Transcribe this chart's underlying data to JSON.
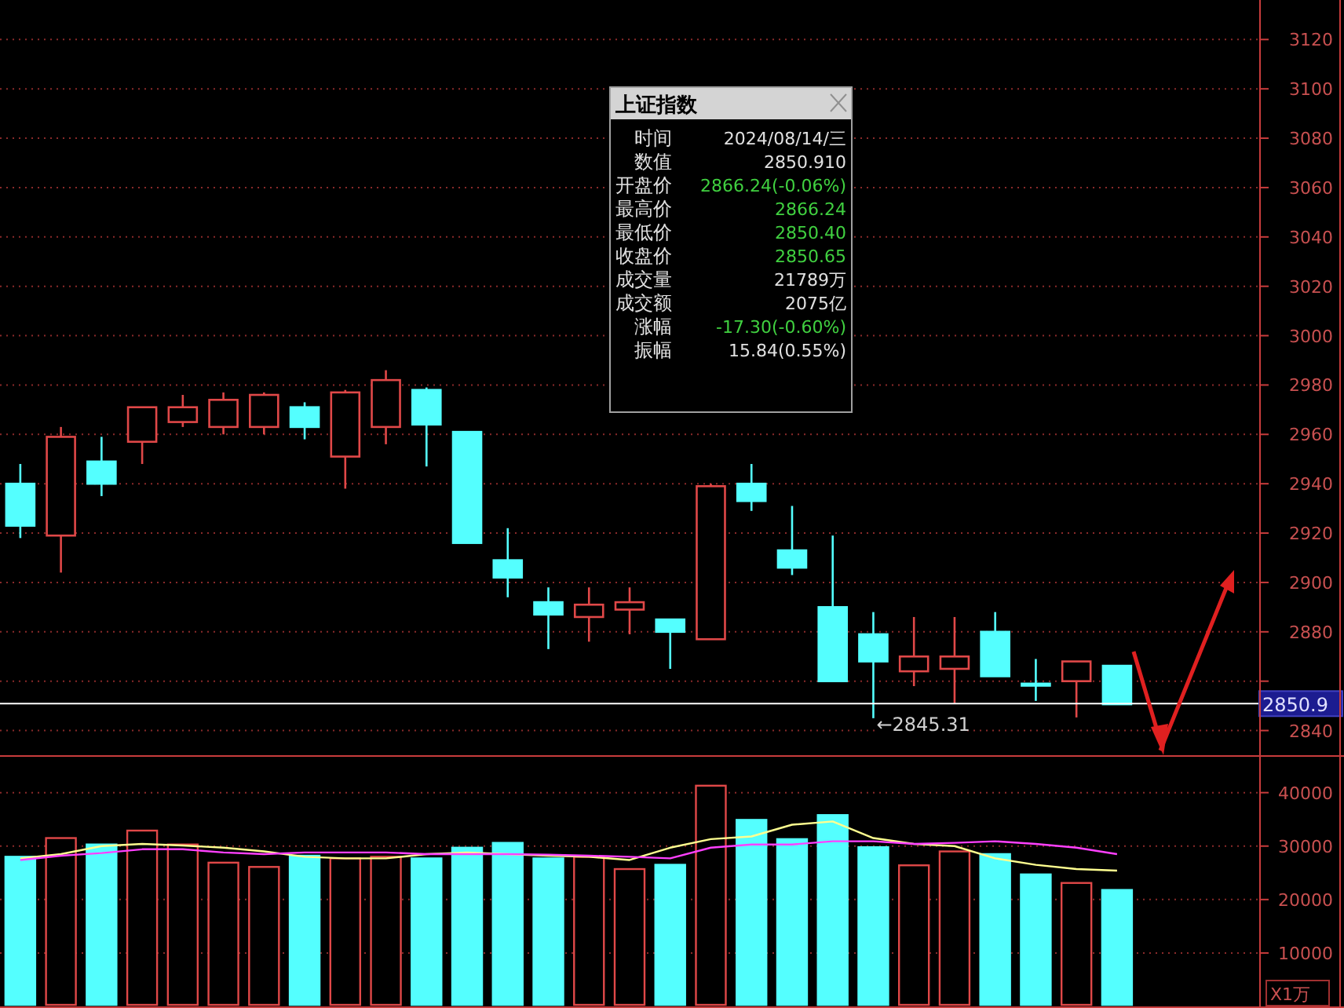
{
  "chart_data": [
    {
      "type": "candlestick",
      "title": "上证指数",
      "categories": [
        null,
        null,
        null,
        null,
        null,
        null,
        null,
        null,
        null,
        null,
        null,
        null,
        null,
        null,
        null,
        null,
        null,
        null,
        null,
        null,
        null,
        null,
        null,
        null,
        null,
        null,
        null,
        null,
        null,
        null,
        null
      ],
      "ohlc": [
        [
          2940,
          2948,
          2918,
          2923
        ],
        [
          2919,
          2963,
          2904,
          2959
        ],
        [
          2949,
          2959,
          2935,
          2940
        ],
        [
          2957,
          2971,
          2948,
          2971
        ],
        [
          2965,
          2976,
          2963,
          2971
        ],
        [
          2963,
          2977,
          2960,
          2974
        ],
        [
          2963,
          2977,
          2960,
          2976
        ],
        [
          2971,
          2973,
          2958,
          2963
        ],
        [
          2951,
          2978,
          2938,
          2977
        ],
        [
          2963,
          2986,
          2956,
          2982
        ],
        [
          2978,
          2979,
          2947,
          2964
        ],
        [
          2961,
          2961,
          2916,
          2916
        ],
        [
          2909,
          2922,
          2894,
          2902
        ],
        [
          2892,
          2898,
          2873,
          2887
        ],
        [
          2886,
          2898,
          2876,
          2891
        ],
        [
          2889,
          2898,
          2879,
          2892
        ],
        [
          2885,
          2885,
          2865,
          2880
        ],
        [
          2877,
          2940,
          2877,
          2939
        ],
        [
          2940,
          2948,
          2929,
          2933
        ],
        [
          2913,
          2931,
          2903,
          2906
        ],
        [
          2890,
          2919,
          2860,
          2860
        ],
        [
          2879,
          2888,
          2845,
          2868
        ],
        [
          2864,
          2886,
          2858,
          2870
        ],
        [
          2865,
          2886,
          2851,
          2870
        ],
        [
          2880,
          2888,
          2862,
          2862
        ],
        [
          2859,
          2869,
          2852,
          2859
        ],
        [
          2860,
          2868,
          2845.31,
          2868
        ],
        [
          2866.24,
          2866.24,
          2850.4,
          2850.65
        ],
        null,
        null,
        null
      ],
      "colors": [
        "#54ffff",
        "#e04848",
        "#54ffff",
        "#e04848",
        "#e04848",
        "#e04848",
        "#e04848",
        "#54ffff",
        "#e04848",
        "#e04848",
        "#54ffff",
        "#54ffff",
        "#54ffff",
        "#54ffff",
        "#e04848",
        "#e04848",
        "#54ffff",
        "#e04848",
        "#54ffff",
        "#54ffff",
        "#54ffff",
        "#54ffff",
        "#e04848",
        "#e04848",
        "#54ffff",
        "#54ffff",
        "#e04848",
        "#54ffff",
        null,
        null,
        null
      ],
      "ylim": [
        2830,
        3136
      ],
      "yticks": [
        {
          "value": 2840,
          "label": "2840"
        },
        {
          "value": 2860,
          "label": null
        },
        2880,
        2900,
        2920,
        2940,
        2960,
        2980,
        3000,
        3020,
        3040,
        3060,
        3080,
        3100,
        3120
      ],
      "grid": "y",
      "ref_lines": [
        {
          "axis": "y",
          "value": 2850.9,
          "label": "2850.9",
          "color": "#ffffff"
        }
      ],
      "annotations": [
        "时间",
        "2024/08/14/三",
        "数值",
        "2850.910",
        "开盘价",
        "2866.24(-0.06%)",
        "最高价",
        "2866.24",
        "最低价",
        "2850.40",
        "收盘价",
        "2850.65",
        "成交量",
        "21789万",
        "成交额",
        "2075亿",
        "涨幅",
        "-17.30(-0.60%)",
        "振幅",
        "15.84(0.55%)",
        "←2845.31"
      ]
    },
    {
      "type": "bar",
      "ylabel": "X1万",
      "categories": [
        null,
        null,
        null,
        null,
        null,
        null,
        null,
        null,
        null,
        null,
        null,
        null,
        null,
        null,
        null,
        null,
        null,
        null,
        null,
        null,
        null,
        null,
        null,
        null,
        null,
        null,
        null,
        null,
        null,
        null,
        null
      ],
      "series": [
        {
          "type": "bar",
          "values": [
            28000,
            31500,
            30300,
            32900,
            30300,
            26900,
            26100,
            28200,
            27700,
            28000,
            27700,
            29700,
            30600,
            27700,
            28000,
            25700,
            26500,
            41300,
            34900,
            31300,
            35800,
            29800,
            26400,
            29000,
            28500,
            24700,
            23100,
            21789,
            null,
            null,
            null
          ],
          "colors": [
            "#54ffff",
            "#e04848",
            "#54ffff",
            "#e04848",
            "#e04848",
            "#e04848",
            "#e04848",
            "#54ffff",
            "#e04848",
            "#e04848",
            "#54ffff",
            "#54ffff",
            "#54ffff",
            "#54ffff",
            "#e04848",
            "#e04848",
            "#54ffff",
            "#e04848",
            "#54ffff",
            "#54ffff",
            "#54ffff",
            "#54ffff",
            "#e04848",
            "#e04848",
            "#54ffff",
            "#54ffff",
            "#e04848",
            "#54ffff",
            null,
            null,
            null
          ]
        },
        {
          "type": "line",
          "color": "#ffff90",
          "values": [
            27700,
            28500,
            30000,
            30400,
            30100,
            29700,
            29000,
            28000,
            27700,
            27700,
            28500,
            28800,
            28500,
            28200,
            28000,
            27400,
            29700,
            31300,
            31800,
            34000,
            34600,
            31500,
            30400,
            30000,
            27700,
            26500,
            25700,
            25400,
            null,
            null,
            null
          ]
        },
        {
          "type": "line",
          "color": "#ff40ff",
          "values": [
            27400,
            28200,
            28700,
            29400,
            29400,
            28800,
            28500,
            28800,
            28800,
            28800,
            28500,
            28500,
            28500,
            28400,
            28200,
            28000,
            27700,
            29700,
            30300,
            30300,
            30900,
            30900,
            30400,
            30600,
            30900,
            30400,
            29700,
            28500,
            null,
            null,
            null
          ]
        }
      ],
      "ylim": [
        0,
        47000
      ],
      "yticks": [
        10000,
        20000,
        30000,
        40000
      ],
      "grid": "y"
    }
  ]
}
